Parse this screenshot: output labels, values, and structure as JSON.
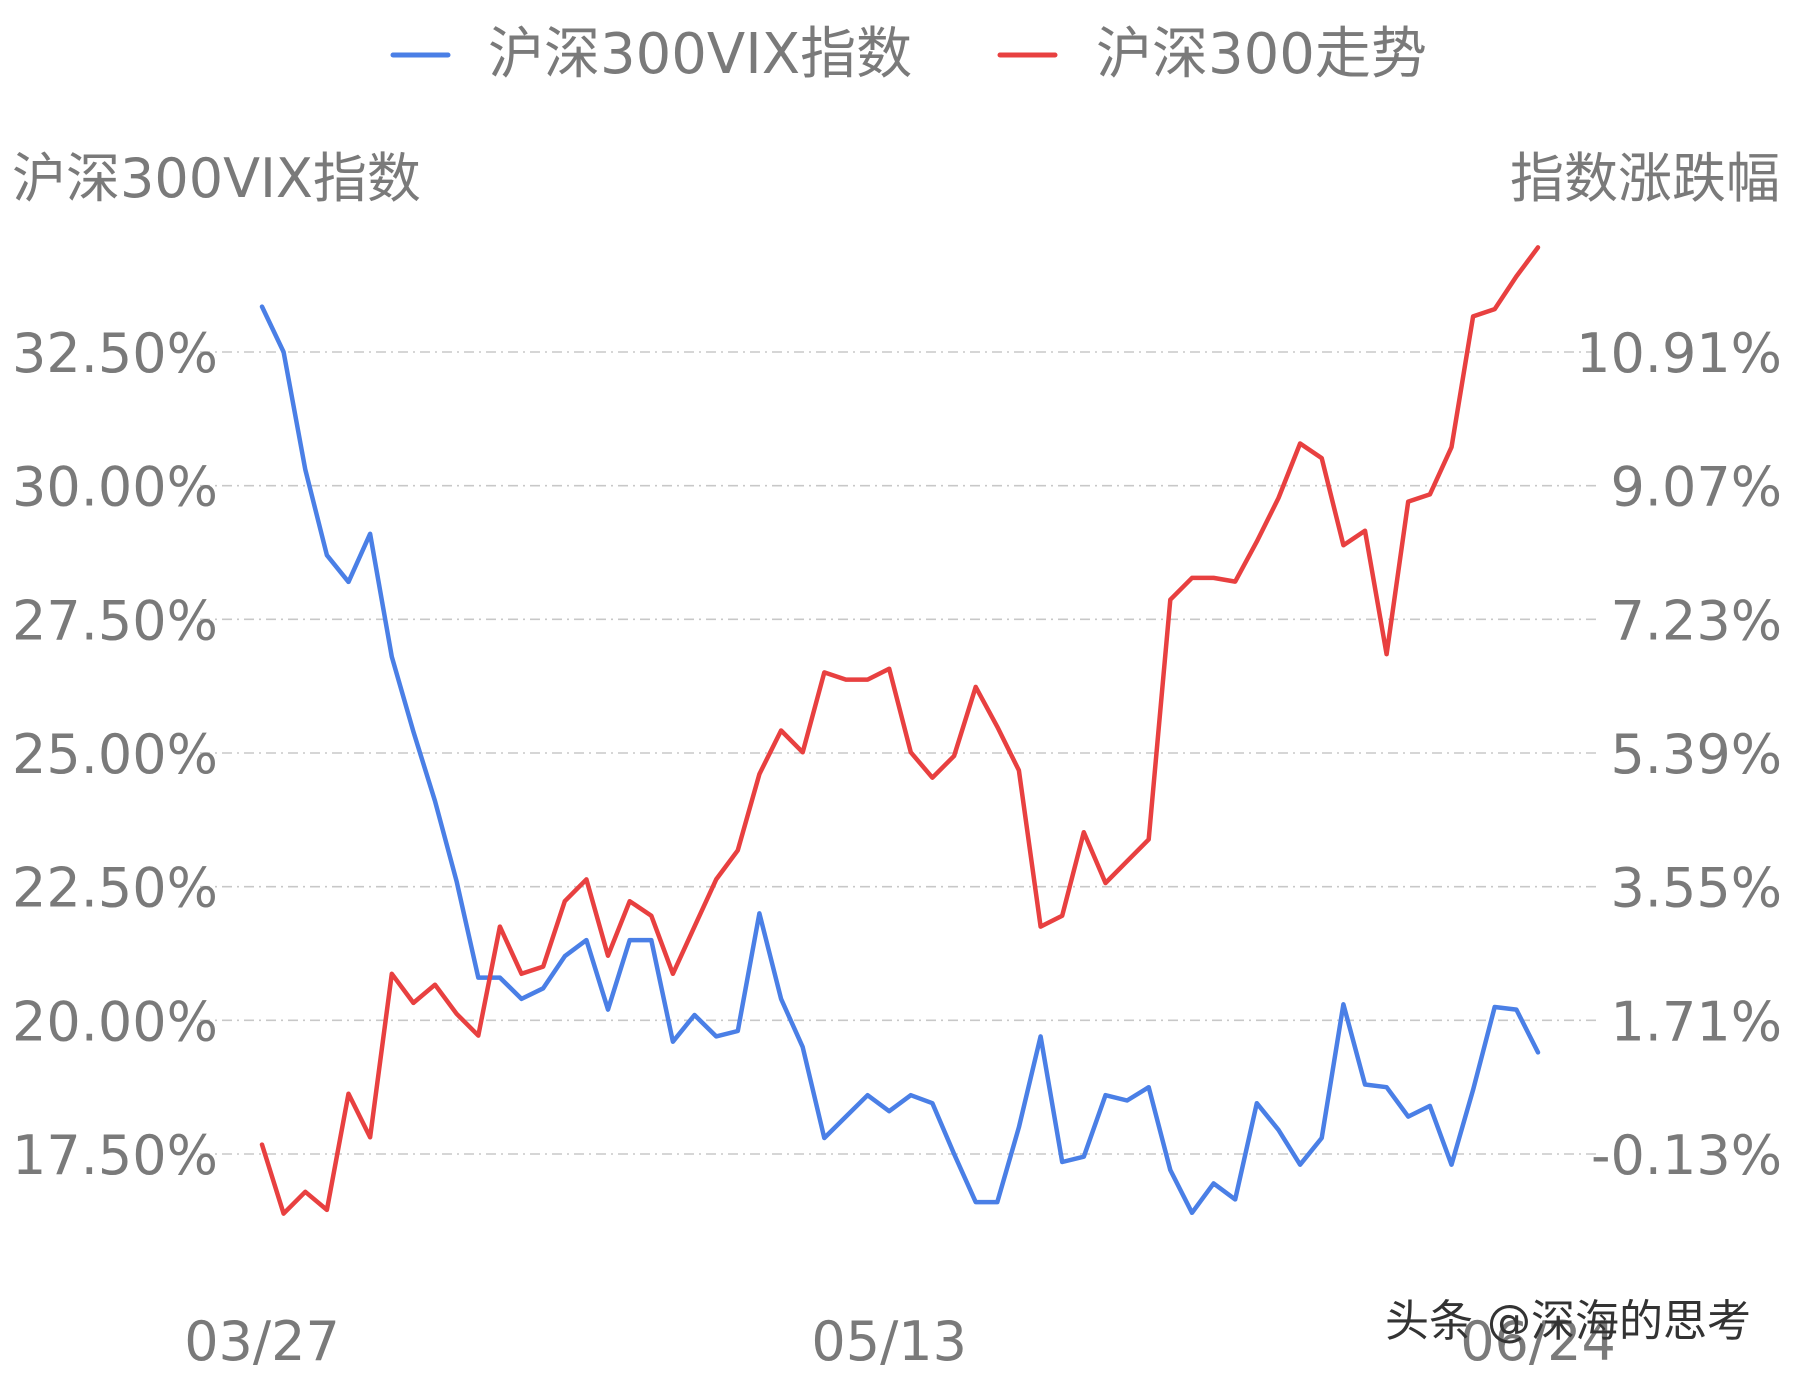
{
  "chart_data": {
    "type": "line",
    "legend_position": "top-center",
    "grid": true,
    "left_axis": {
      "title": "沪深300VIX指数",
      "ticks": [
        "32.50%",
        "30.00%",
        "27.50%",
        "25.00%",
        "22.50%",
        "20.00%",
        "17.50%"
      ],
      "tick_values": [
        32.5,
        30.0,
        27.5,
        25.0,
        22.5,
        20.0,
        17.5
      ],
      "range": [
        15.1,
        33.5
      ]
    },
    "right_axis": {
      "title": "指数涨跌幅",
      "ticks": [
        "10.91%",
        "9.07%",
        "7.23%",
        "5.39%",
        "3.55%",
        "1.71%",
        "-0.13%"
      ],
      "tick_values": [
        10.91,
        9.07,
        7.23,
        5.39,
        3.55,
        1.71,
        -0.13
      ],
      "range": [
        -1.5,
        11.5
      ]
    },
    "x_ticks": [
      {
        "label": "03/27",
        "index": 0
      },
      {
        "label": "05/13",
        "index": 29
      },
      {
        "label": "06/24",
        "index": 59
      }
    ],
    "series": [
      {
        "name": "沪深300VIX指数",
        "axis": "left",
        "color": "#4a7fe6",
        "values": [
          33.35,
          32.5,
          30.3,
          28.7,
          28.2,
          29.1,
          26.8,
          25.4,
          24.1,
          22.6,
          20.8,
          20.8,
          20.4,
          20.6,
          21.2,
          21.5,
          20.2,
          21.5,
          21.5,
          19.6,
          20.1,
          19.7,
          19.8,
          22.0,
          20.4,
          19.5,
          17.8,
          18.2,
          18.6,
          18.3,
          18.6,
          18.45,
          17.5,
          16.6,
          16.6,
          18.0,
          19.7,
          17.35,
          17.45,
          18.6,
          18.5,
          18.75,
          17.2,
          16.4,
          16.95,
          16.65,
          18.45,
          17.95,
          17.3,
          17.8,
          20.3,
          18.8,
          18.75,
          18.2,
          18.4,
          17.3,
          18.7,
          20.25,
          20.2,
          19.4
        ]
      },
      {
        "name": "沪深300走势",
        "axis": "right",
        "color": "#e84040",
        "values": [
          -0.0,
          -0.95,
          -0.65,
          -0.9,
          0.7,
          0.1,
          2.35,
          1.95,
          2.2,
          1.8,
          1.5,
          3.0,
          2.35,
          2.45,
          3.35,
          3.65,
          2.6,
          3.35,
          3.15,
          2.35,
          3.0,
          3.65,
          4.05,
          5.1,
          5.7,
          5.4,
          6.5,
          6.4,
          6.4,
          6.55,
          5.4,
          5.05,
          5.35,
          6.3,
          5.75,
          5.15,
          3.0,
          3.15,
          4.3,
          3.6,
          3.9,
          4.2,
          7.5,
          7.8,
          7.8,
          7.75,
          8.3,
          8.9,
          9.65,
          9.45,
          8.25,
          8.45,
          6.75,
          8.85,
          8.95,
          9.6,
          11.4,
          11.5,
          11.95,
          12.35
        ]
      }
    ],
    "watermark": "头条 @深海的思考"
  }
}
